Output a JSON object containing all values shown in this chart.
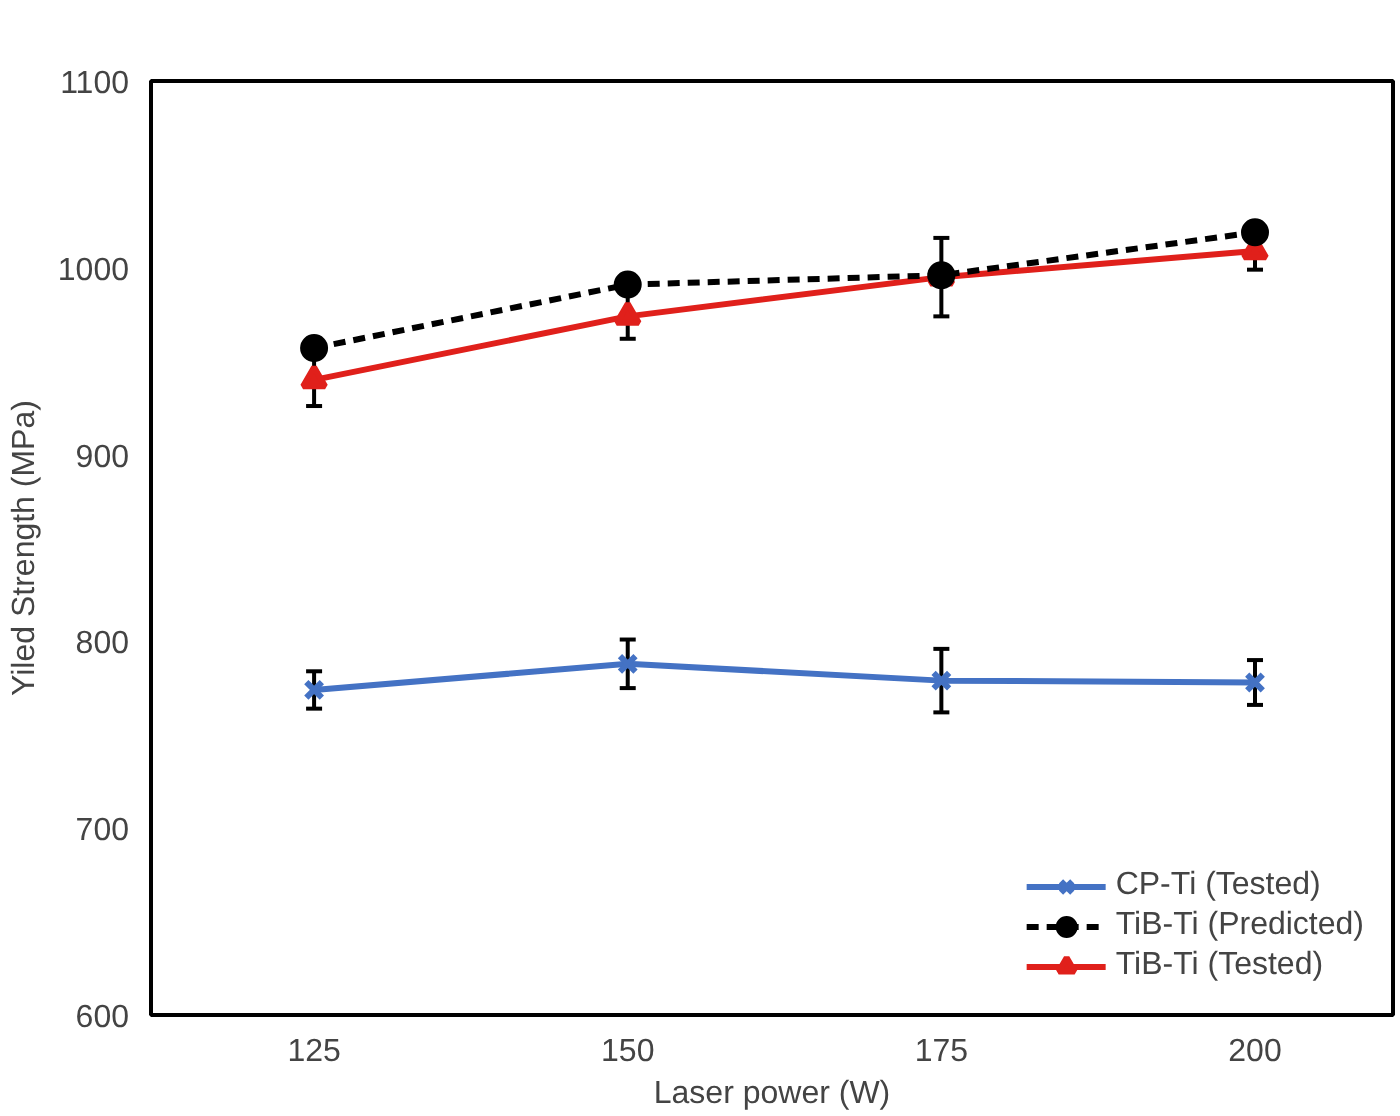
{
  "chart_data": {
    "type": "line",
    "xlabel": "Laser power (W)",
    "ylabel": "Yiled Strength (MPa)",
    "x": [
      125,
      150,
      175,
      200
    ],
    "xlim": [
      112,
      211
    ],
    "xticks": [
      125,
      150,
      175,
      200
    ],
    "ylim": [
      600,
      1100
    ],
    "yticks": [
      600,
      700,
      800,
      900,
      1000,
      1100
    ],
    "grid": false,
    "legend": "bottom right",
    "series": [
      {
        "name": "CP-Ti (Tested)",
        "color": "#4472c4",
        "values": [
          774,
          788,
          779,
          778
        ],
        "errors": [
          10,
          13,
          17,
          12
        ],
        "marker": "cross",
        "line_style": "solid"
      },
      {
        "name": "TiB-Ti (Predicted)",
        "color": "#000000",
        "values": [
          957,
          991,
          996,
          1019
        ],
        "marker": "circle",
        "line_style": "dashed"
      },
      {
        "name": "TiB-Ti (Tested)",
        "color": "#e0201b",
        "values": [
          940,
          974,
          995,
          1009
        ],
        "errors": [
          14,
          12,
          21,
          10
        ],
        "marker": "triangle",
        "line_style": "solid"
      }
    ]
  }
}
